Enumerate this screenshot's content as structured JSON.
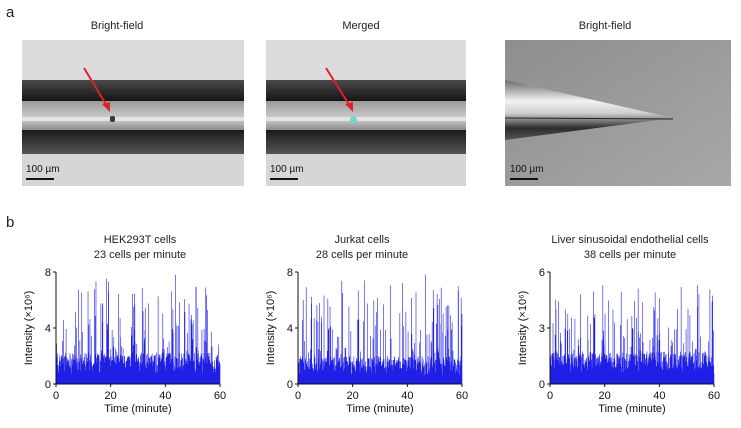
{
  "figure": {
    "panel_a": "a",
    "panel_b": "b",
    "images": [
      {
        "title": "Bright-field",
        "scale": "100 µm"
      },
      {
        "title": "Merged",
        "scale": "100 µm"
      },
      {
        "title": "Bright-field",
        "scale": "100 µm"
      }
    ],
    "colors": {
      "trace": "#1f1fe6",
      "arrow": "#e0202a",
      "cell_marker": "#6fd6c8"
    }
  },
  "chart_data": [
    {
      "type": "bar",
      "title": "HEK293T cells",
      "subtitle": "23 cells per minute",
      "xlabel": "Time (minute)",
      "ylabel": "Intensity (×10⁶)",
      "xlim": [
        0,
        60
      ],
      "ylim": [
        0,
        8
      ],
      "xticks": [
        "0",
        "20",
        "40",
        "60"
      ],
      "yticks": [
        "0",
        "4",
        "8"
      ],
      "baseline": 1.8,
      "peak_max": 7.8,
      "seed": 11
    },
    {
      "type": "bar",
      "title": "Jurkat cells",
      "subtitle": "28 cells per minute",
      "xlabel": "Time (minute)",
      "ylabel": "Intensity (×10⁶)",
      "xlim": [
        0,
        60
      ],
      "ylim": [
        0,
        8
      ],
      "xticks": [
        "0",
        "20",
        "40",
        "60"
      ],
      "yticks": [
        "0",
        "4",
        "8"
      ],
      "baseline": 1.6,
      "peak_max": 7.8,
      "seed": 23
    },
    {
      "type": "bar",
      "title": "Liver sinusoidal endothelial cells",
      "subtitle": "38 cells per minute",
      "xlabel": "Time (minute)",
      "ylabel": "Intensity (×10⁶)",
      "xlim": [
        0,
        60
      ],
      "ylim": [
        0,
        6
      ],
      "xticks": [
        "0",
        "20",
        "40",
        "60"
      ],
      "yticks": [
        "0",
        "3",
        "6"
      ],
      "baseline": 1.4,
      "peak_max": 5.3,
      "seed": 37
    }
  ]
}
